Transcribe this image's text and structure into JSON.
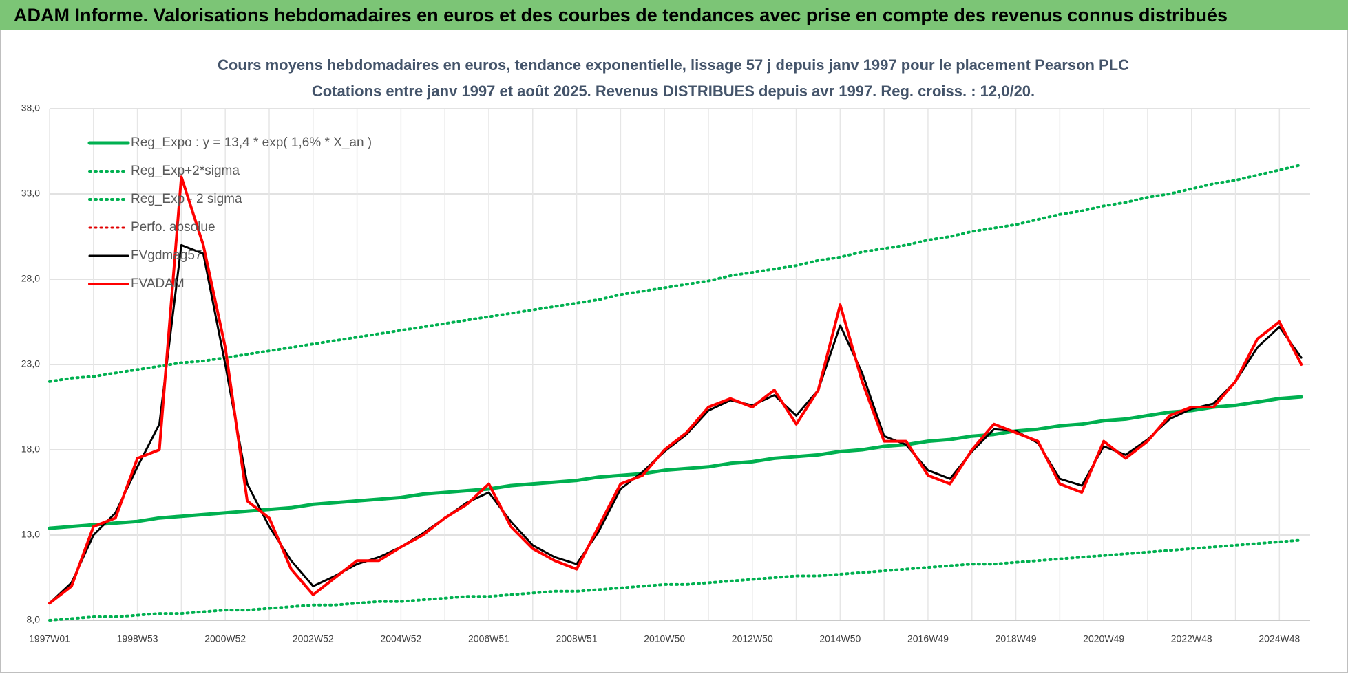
{
  "banner": "ADAM Informe. Valorisations hebdomadaires en euros et des courbes de tendances avec prise en compte des revenus connus distribués",
  "chart_data": {
    "type": "line",
    "title": "Cours moyens hebdomadaires en euros, tendance exponentielle, lissage 57 j depuis janv 1997 pour le placement Pearson PLC",
    "subtitle": "Cotations entre janv 1997 et août 2025.  Revenus DISTRIBUES depuis avr 1997. Reg. croiss. : 12,0/20.",
    "categories": [
      "1997W01",
      null,
      null,
      null,
      "1998W53",
      null,
      null,
      null,
      "2000W52",
      null,
      null,
      null,
      "2002W52",
      null,
      null,
      null,
      "2004W52",
      null,
      null,
      null,
      "2006W51",
      null,
      null,
      null,
      "2008W51",
      null,
      null,
      null,
      "2010W50",
      null,
      null,
      null,
      "2012W50",
      null,
      null,
      null,
      "2014W50",
      null,
      null,
      null,
      "2016W49",
      null,
      null,
      null,
      "2018W49",
      null,
      null,
      null,
      "2020W49",
      null,
      null,
      null,
      "2022W48",
      null,
      null,
      null,
      "2024W48",
      null
    ],
    "ylim": [
      8,
      38
    ],
    "yticks": [
      {
        "value": 8,
        "label": "8,0"
      },
      {
        "value": 13,
        "label": "13,0"
      },
      {
        "value": 18,
        "label": "18,0"
      },
      {
        "value": 23,
        "label": "23,0"
      },
      {
        "value": 28,
        "label": "28,0"
      },
      {
        "value": 33,
        "label": "33,0"
      },
      {
        "value": 38,
        "label": "38,0"
      }
    ],
    "grid": true,
    "legend": "top-left",
    "series": [
      {
        "name": "Reg_Expo : y = 13,4 * exp( 1,6% *  X_an )",
        "color": "#00b050",
        "line_style": "solid",
        "width": 5,
        "values": [
          13.4,
          13.5,
          13.6,
          13.7,
          13.8,
          14.0,
          14.1,
          14.2,
          14.3,
          14.4,
          14.5,
          14.6,
          14.8,
          14.9,
          15.0,
          15.1,
          15.2,
          15.4,
          15.5,
          15.6,
          15.7,
          15.9,
          16.0,
          16.1,
          16.2,
          16.4,
          16.5,
          16.6,
          16.8,
          16.9,
          17.0,
          17.2,
          17.3,
          17.5,
          17.6,
          17.7,
          17.9,
          18.0,
          18.2,
          18.3,
          18.5,
          18.6,
          18.8,
          18.9,
          19.1,
          19.2,
          19.4,
          19.5,
          19.7,
          19.8,
          20.0,
          20.2,
          20.3,
          20.5,
          20.6,
          20.8,
          21.0,
          21.1
        ]
      },
      {
        "name": "Reg_Exp+2*sigma",
        "color": "#00b050",
        "line_style": "dotted",
        "width": 4,
        "values": [
          22.0,
          22.2,
          22.3,
          22.5,
          22.7,
          22.9,
          23.1,
          23.2,
          23.4,
          23.6,
          23.8,
          24.0,
          24.2,
          24.4,
          24.6,
          24.8,
          25.0,
          25.2,
          25.4,
          25.6,
          25.8,
          26.0,
          26.2,
          26.4,
          26.6,
          26.8,
          27.1,
          27.3,
          27.5,
          27.7,
          27.9,
          28.2,
          28.4,
          28.6,
          28.8,
          29.1,
          29.3,
          29.6,
          29.8,
          30.0,
          30.3,
          30.5,
          30.8,
          31.0,
          31.2,
          31.5,
          31.8,
          32.0,
          32.3,
          32.5,
          32.8,
          33.0,
          33.3,
          33.6,
          33.8,
          34.1,
          34.4,
          34.7
        ]
      },
      {
        "name": "Reg_Exp - 2 sigma",
        "color": "#00b050",
        "line_style": "dotted",
        "width": 4,
        "values": [
          8.0,
          8.1,
          8.2,
          8.2,
          8.3,
          8.4,
          8.4,
          8.5,
          8.6,
          8.6,
          8.7,
          8.8,
          8.9,
          8.9,
          9.0,
          9.1,
          9.1,
          9.2,
          9.3,
          9.4,
          9.4,
          9.5,
          9.6,
          9.7,
          9.7,
          9.8,
          9.9,
          10.0,
          10.1,
          10.1,
          10.2,
          10.3,
          10.4,
          10.5,
          10.6,
          10.6,
          10.7,
          10.8,
          10.9,
          11.0,
          11.1,
          11.2,
          11.3,
          11.3,
          11.4,
          11.5,
          11.6,
          11.7,
          11.8,
          11.9,
          12.0,
          12.1,
          12.2,
          12.3,
          12.4,
          12.5,
          12.6,
          12.7
        ]
      },
      {
        "name": "Perfo. absolue",
        "color": "#e00000",
        "line_style": "dotted",
        "width": 3,
        "values": [
          9.0,
          10.0,
          13.5,
          14.0,
          17.5,
          18.0,
          34.0,
          30.0,
          24.0,
          15.0,
          14.0,
          11.0,
          9.5,
          10.5,
          11.5,
          11.5,
          12.3,
          13.0,
          14.0,
          14.8,
          16.0,
          13.5,
          12.2,
          11.5,
          11.0,
          13.5,
          16.0,
          16.5,
          18.0,
          19.0,
          20.5,
          21.0,
          20.5,
          21.5,
          19.5,
          21.5,
          26.5,
          22.0,
          18.5,
          18.5,
          16.5,
          16.0,
          18.0,
          19.5,
          19.0,
          18.5,
          16.0,
          15.5,
          18.5,
          17.5,
          18.5,
          20.0,
          20.5,
          20.5,
          22.0,
          24.5,
          25.5,
          23.0
        ]
      },
      {
        "name": "FVgdmag57",
        "color": "#000000",
        "line_style": "solid",
        "width": 3,
        "values": [
          9.0,
          10.2,
          13.0,
          14.3,
          17.0,
          19.5,
          30.0,
          29.5,
          23.0,
          16.0,
          13.5,
          11.5,
          10.0,
          10.6,
          11.3,
          11.7,
          12.3,
          13.1,
          14.0,
          14.9,
          15.5,
          13.8,
          12.4,
          11.7,
          11.3,
          13.2,
          15.7,
          16.7,
          17.9,
          18.9,
          20.3,
          20.9,
          20.6,
          21.2,
          20.0,
          21.5,
          25.3,
          22.5,
          18.8,
          18.3,
          16.8,
          16.3,
          17.9,
          19.2,
          19.1,
          18.4,
          16.3,
          15.9,
          18.2,
          17.7,
          18.6,
          19.8,
          20.4,
          20.7,
          22.0,
          24.0,
          25.2,
          23.4
        ]
      },
      {
        "name": "FVADAM",
        "color": "#ff0000",
        "line_style": "solid",
        "width": 4,
        "values": [
          9.0,
          10.0,
          13.5,
          14.0,
          17.5,
          18.0,
          34.0,
          30.0,
          24.0,
          15.0,
          14.0,
          11.0,
          9.5,
          10.5,
          11.5,
          11.5,
          12.3,
          13.0,
          14.0,
          14.8,
          16.0,
          13.5,
          12.2,
          11.5,
          11.0,
          13.5,
          16.0,
          16.5,
          18.0,
          19.0,
          20.5,
          21.0,
          20.5,
          21.5,
          19.5,
          21.5,
          26.5,
          22.0,
          18.5,
          18.5,
          16.5,
          16.0,
          18.0,
          19.5,
          19.0,
          18.5,
          16.0,
          15.5,
          18.5,
          17.5,
          18.5,
          20.0,
          20.5,
          20.5,
          22.0,
          24.5,
          25.5,
          23.0
        ]
      }
    ]
  }
}
